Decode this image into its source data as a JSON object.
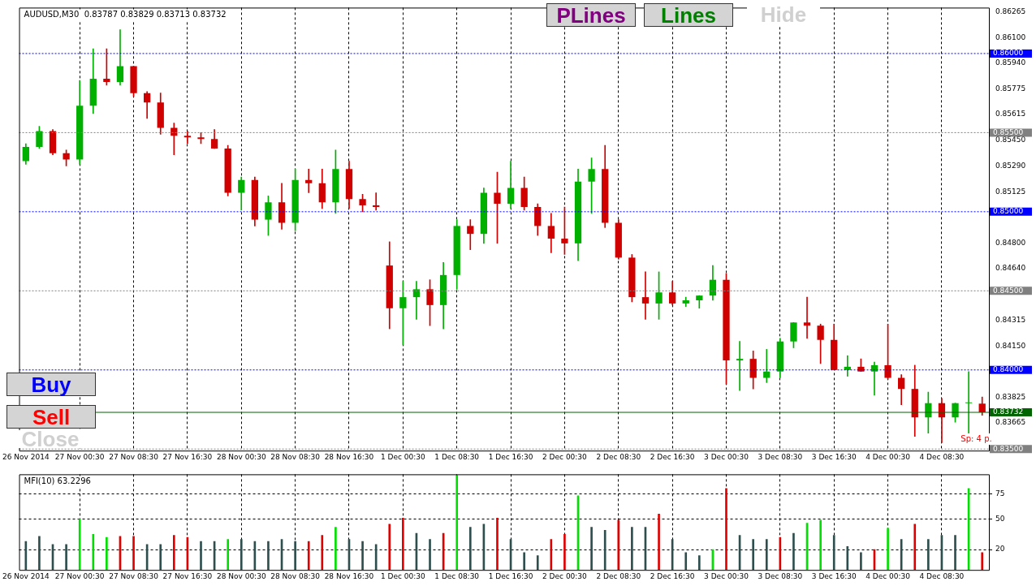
{
  "chart_data": [
    {
      "type": "candlestick",
      "title": "AUDUSD,M30  0.83787 0.83829 0.83713 0.83732",
      "categories": [
        "26 Nov 2014",
        null,
        null,
        null,
        "27 Nov 00:30",
        null,
        null,
        null,
        "27 Nov 08:30",
        null,
        null,
        null,
        "27 Nov 16:30",
        null,
        null,
        null,
        "28 Nov 00:30",
        null,
        null,
        null,
        "28 Nov 08:30",
        null,
        null,
        null,
        "28 Nov 16:30",
        null,
        null,
        null,
        "1 Dec 00:30",
        null,
        null,
        null,
        "1 Dec 08:30",
        null,
        null,
        null,
        "1 Dec 16:30",
        null,
        null,
        null,
        "2 Dec 00:30",
        null,
        null,
        null,
        "2 Dec 08:30",
        null,
        null,
        null,
        "2 Dec 16:30",
        null,
        null,
        null,
        "3 Dec 00:30",
        null,
        null,
        null,
        "3 Dec 08:30",
        null,
        null,
        null,
        "3 Dec 16:30",
        null,
        null,
        null,
        "4 Dec 00:30",
        null,
        null,
        null,
        "4 Dec 08:30",
        null,
        null,
        null
      ],
      "ohlc": [
        [
          0.8532,
          0.8543,
          0.853,
          0.8541
        ],
        [
          0.8541,
          0.8554,
          0.854,
          0.8551
        ],
        [
          0.8551,
          0.8552,
          0.8536,
          0.8537
        ],
        [
          0.8537,
          0.8539,
          0.8529,
          0.8533
        ],
        [
          0.8533,
          0.8583,
          0.853,
          0.8567
        ],
        [
          0.8567,
          0.8603,
          0.8562,
          0.8584
        ],
        [
          0.8584,
          0.8603,
          0.858,
          0.8582
        ],
        [
          0.8582,
          0.8615,
          0.858,
          0.8592
        ],
        [
          0.8592,
          0.8592,
          0.8573,
          0.8575
        ],
        [
          0.8575,
          0.8576,
          0.8559,
          0.8569
        ],
        [
          0.8569,
          0.8575,
          0.8549,
          0.8553
        ],
        [
          0.8553,
          0.8556,
          0.8536,
          0.8548
        ],
        [
          0.8548,
          0.8551,
          0.8543,
          0.8547
        ],
        [
          0.8547,
          0.855,
          0.8543,
          0.8546
        ],
        [
          0.8546,
          0.8552,
          0.854,
          0.854
        ],
        [
          0.854,
          0.8542,
          0.851,
          0.8512
        ],
        [
          0.8512,
          0.8522,
          0.8501,
          0.852
        ],
        [
          0.852,
          0.8522,
          0.8491,
          0.8495
        ],
        [
          0.8495,
          0.851,
          0.8485,
          0.8506
        ],
        [
          0.8506,
          0.8518,
          0.8489,
          0.8493
        ],
        [
          0.8493,
          0.8527,
          0.8488,
          0.852
        ],
        [
          0.852,
          0.8527,
          0.8512,
          0.8518
        ],
        [
          0.8518,
          0.8527,
          0.8502,
          0.8506
        ],
        [
          0.8506,
          0.8539,
          0.8499,
          0.8527
        ],
        [
          0.8527,
          0.8532,
          0.8502,
          0.8508
        ],
        [
          0.8508,
          0.8511,
          0.85,
          0.8504
        ],
        [
          0.8504,
          0.8512,
          0.8501,
          0.8503
        ],
        [
          0.8466,
          0.8481,
          0.8426,
          0.8439
        ],
        [
          0.8439,
          0.8456,
          0.8416,
          0.8446
        ],
        [
          0.8446,
          0.8456,
          0.8432,
          0.8451
        ],
        [
          0.8451,
          0.8457,
          0.8428,
          0.8441
        ],
        [
          0.8441,
          0.8468,
          0.8426,
          0.846
        ],
        [
          0.846,
          0.8495,
          0.8451,
          0.8491
        ],
        [
          0.8491,
          0.8495,
          0.8476,
          0.8486
        ],
        [
          0.8486,
          0.8515,
          0.848,
          0.8512
        ],
        [
          0.8512,
          0.8525,
          0.848,
          0.8505
        ],
        [
          0.8505,
          0.8532,
          0.8502,
          0.8515
        ],
        [
          0.8515,
          0.8522,
          0.8501,
          0.8503
        ],
        [
          0.8503,
          0.8505,
          0.8485,
          0.8491
        ],
        [
          0.8491,
          0.8499,
          0.8474,
          0.8483
        ],
        [
          0.8483,
          0.8503,
          0.8473,
          0.848
        ],
        [
          0.848,
          0.8527,
          0.8469,
          0.8519
        ],
        [
          0.8519,
          0.8534,
          0.8499,
          0.8527
        ],
        [
          0.8527,
          0.8542,
          0.849,
          0.8493
        ],
        [
          0.8493,
          0.8495,
          0.847,
          0.8471
        ],
        [
          0.8471,
          0.8473,
          0.8443,
          0.8446
        ],
        [
          0.8446,
          0.8462,
          0.8432,
          0.8442
        ],
        [
          0.8442,
          0.8462,
          0.8432,
          0.8449
        ],
        [
          0.8449,
          0.8456,
          0.8441,
          0.8442
        ],
        [
          0.8442,
          0.8446,
          0.844,
          0.8444
        ],
        [
          0.8444,
          0.8447,
          0.8439,
          0.8447
        ],
        [
          0.8447,
          0.8466,
          0.8444,
          0.8457
        ],
        [
          0.8457,
          0.8461,
          0.8391,
          0.8406
        ],
        [
          0.8406,
          0.8418,
          0.8387,
          0.8407
        ],
        [
          0.8407,
          0.8412,
          0.8388,
          0.8395
        ],
        [
          0.8395,
          0.8413,
          0.8392,
          0.8399
        ],
        [
          0.8399,
          0.842,
          0.8395,
          0.8418
        ],
        [
          0.8418,
          0.843,
          0.8414,
          0.843
        ],
        [
          0.843,
          0.8446,
          0.842,
          0.8428
        ],
        [
          0.8428,
          0.8429,
          0.8404,
          0.8419
        ],
        [
          0.8419,
          0.8429,
          0.84,
          0.84
        ],
        [
          0.84,
          0.8409,
          0.8396,
          0.8402
        ],
        [
          0.8402,
          0.8407,
          0.8399,
          0.8399
        ],
        [
          0.8399,
          0.8405,
          0.8384,
          0.8403
        ],
        [
          0.8403,
          0.8429,
          0.8394,
          0.8395
        ],
        [
          0.8395,
          0.8397,
          0.8378,
          0.8388
        ],
        [
          0.8388,
          0.8403,
          0.8358,
          0.837
        ],
        [
          0.837,
          0.8386,
          0.836,
          0.8379
        ],
        [
          0.8379,
          0.8382,
          0.8354,
          0.837
        ],
        [
          0.837,
          0.8379,
          0.8367,
          0.8379
        ],
        [
          0.8379,
          0.8399,
          0.836,
          0.8379
        ],
        [
          0.83787,
          0.83829,
          0.83713,
          0.83732
        ]
      ],
      "colors": [
        "#00b000",
        "#00b000",
        "#d00000",
        "#d00000",
        "#00b000",
        "#00b000",
        "#d00000",
        "#00b000",
        "#d00000",
        "#d00000",
        "#d00000",
        "#d00000",
        "#d00000",
        "#d00000",
        "#d00000",
        "#d00000",
        "#00b000",
        "#d00000",
        "#00b000",
        "#d00000",
        "#00b000",
        "#d00000",
        "#d00000",
        "#00b000",
        "#d00000",
        "#d00000",
        "#d00000",
        "#d00000",
        "#00b000",
        "#00b000",
        "#d00000",
        "#00b000",
        "#00b000",
        "#d00000",
        "#00b000",
        "#d00000",
        "#00b000",
        "#d00000",
        "#d00000",
        "#d00000",
        "#d00000",
        "#00b000",
        "#00b000",
        "#d00000",
        "#d00000",
        "#d00000",
        "#d00000",
        "#00b000",
        "#d00000",
        "#00b000",
        "#00b000",
        "#00b000",
        "#d00000",
        "#00b000",
        "#d00000",
        "#00b000",
        "#00b000",
        "#00b000",
        "#d00000",
        "#d00000",
        "#d00000",
        "#00b000",
        "#d00000",
        "#00b000",
        "#d00000",
        "#d00000",
        "#d00000",
        "#00b000",
        "#d00000",
        "#00b000",
        "#00b000",
        "#d00000"
      ],
      "ylim": [
        0.8349,
        0.8629
      ],
      "yticks": [
        {
          "value": 0.86265,
          "label": "0.86265"
        },
        {
          "value": 0.861,
          "label": "0.86100"
        },
        {
          "value": 0.8594,
          "label": "0.85940"
        },
        {
          "value": 0.85775,
          "label": "0.85775"
        },
        {
          "value": 0.85615,
          "label": "0.85615"
        },
        {
          "value": 0.8545,
          "label": "0.85450"
        },
        {
          "value": 0.8529,
          "label": "0.85290"
        },
        {
          "value": 0.85125,
          "label": "0.85125"
        },
        {
          "value": 0.848,
          "label": "0.84800"
        },
        {
          "value": 0.8464,
          "label": "0.84640"
        },
        {
          "value": 0.84315,
          "label": "0.84315"
        },
        {
          "value": 0.8415,
          "label": "0.84150"
        },
        {
          "value": 0.83825,
          "label": "0.83825"
        },
        {
          "value": 0.83665,
          "label": "0.83665"
        }
      ],
      "ref_lines": [
        {
          "axis": "y",
          "value": 0.86,
          "label": "0.86000",
          "color": "#0000ff",
          "line_style": "dotted"
        },
        {
          "axis": "y",
          "value": 0.855,
          "label": "0.85500",
          "color": "#808080",
          "line_style": "dotted"
        },
        {
          "axis": "y",
          "value": 0.85,
          "label": "0.85000",
          "color": "#0000ff",
          "line_style": "dotted"
        },
        {
          "axis": "y",
          "value": 0.845,
          "label": "0.84500",
          "color": "#808080",
          "line_style": "dotted"
        },
        {
          "axis": "y",
          "value": 0.84,
          "label": "0.84000",
          "color": "#0000ff",
          "line_style": "dotted"
        },
        {
          "axis": "y",
          "value": 0.83732,
          "label": "0.83732",
          "color": "#006400",
          "line_style": "solid"
        },
        {
          "axis": "y",
          "value": 0.835,
          "label": "0.83500",
          "color": "#808080",
          "line_style": "dotted"
        }
      ],
      "annotations": [
        "PLines",
        "Lines",
        "Hide",
        "Buy",
        "Sell",
        "Close",
        "Sp: 4 p."
      ],
      "grid": "x"
    },
    {
      "type": "bar",
      "title": "MFI(10) 63.2296",
      "categories": [
        "26 Nov 2014",
        null,
        null,
        null,
        "27 Nov 00:30",
        null,
        null,
        null,
        "27 Nov 08:30",
        null,
        null,
        null,
        "27 Nov 16:30",
        null,
        null,
        null,
        "28 Nov 00:30",
        null,
        null,
        null,
        "28 Nov 08:30",
        null,
        null,
        null,
        "28 Nov 16:30",
        null,
        null,
        null,
        "1 Dec 00:30",
        null,
        null,
        null,
        "1 Dec 08:30",
        null,
        null,
        null,
        "1 Dec 16:30",
        null,
        null,
        null,
        "2 Dec 00:30",
        null,
        null,
        null,
        "2 Dec 08:30",
        null,
        null,
        null,
        "2 Dec 16:30",
        null,
        null,
        null,
        "3 Dec 00:30",
        null,
        null,
        null,
        "3 Dec 08:30",
        null,
        null,
        null,
        "3 Dec 16:30",
        null,
        null,
        null,
        "4 Dec 00:30",
        null,
        null,
        null,
        "4 Dec 08:30",
        null,
        null,
        null
      ],
      "values": [
        28,
        33,
        25,
        25,
        50,
        35,
        32,
        33,
        33,
        25,
        25,
        34,
        32,
        28,
        28,
        30,
        30,
        28,
        28,
        30,
        28,
        28,
        34,
        42,
        30,
        28,
        25,
        45,
        51,
        36,
        30,
        36,
        93,
        42,
        45,
        51,
        30,
        17,
        14,
        30,
        35,
        73,
        42,
        39,
        49,
        42,
        42,
        55,
        30,
        17,
        14,
        20,
        80,
        34,
        30,
        30,
        32,
        36,
        46,
        49,
        34,
        23,
        17,
        20,
        41,
        30,
        45,
        30,
        34,
        34,
        80,
        17
      ],
      "colors": [
        "#2f4f4f",
        "#2f4f4f",
        "#2f4f4f",
        "#2f4f4f",
        "#00e000",
        "#00e000",
        "#00e000",
        "#e00000",
        "#e00000",
        "#2f4f4f",
        "#2f4f4f",
        "#e00000",
        "#e00000",
        "#2f4f4f",
        "#2f4f4f",
        "#00e000",
        "#2f4f4f",
        "#2f4f4f",
        "#2f4f4f",
        "#2f4f4f",
        "#2f4f4f",
        "#e00000",
        "#e00000",
        "#00e000",
        "#2f4f4f",
        "#2f4f4f",
        "#2f4f4f",
        "#e00000",
        "#e00000",
        "#2f4f4f",
        "#2f4f4f",
        "#e00000",
        "#00e000",
        "#2f4f4f",
        "#2f4f4f",
        "#e00000",
        "#2f4f4f",
        "#2f4f4f",
        "#2f4f4f",
        "#e00000",
        "#e00000",
        "#00e000",
        "#2f4f4f",
        "#2f4f4f",
        "#e00000",
        "#2f4f4f",
        "#2f4f4f",
        "#e00000",
        "#2f4f4f",
        "#2f4f4f",
        "#2f4f4f",
        "#00e000",
        "#e00000",
        "#2f4f4f",
        "#2f4f4f",
        "#2f4f4f",
        "#e00000",
        "#2f4f4f",
        "#00e000",
        "#00e000",
        "#2f4f4f",
        "#2f4f4f",
        "#2f4f4f",
        "#e00000",
        "#00e000",
        "#2f4f4f",
        "#e00000",
        "#2f4f4f",
        "#2f4f4f",
        "#2f4f4f",
        "#00e000",
        "#e00000"
      ],
      "ylim": [
        0,
        94
      ],
      "yticks": [
        20,
        50,
        75
      ],
      "grid": true
    }
  ]
}
